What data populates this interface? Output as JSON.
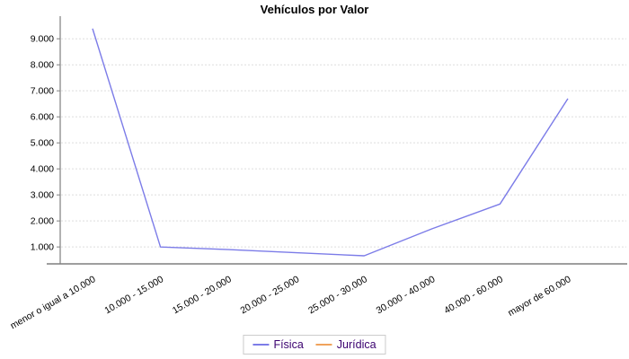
{
  "title": "Vehículos por Valor",
  "chart_data": {
    "type": "line",
    "title": "Vehículos por Valor",
    "categories": [
      "menor o igual a 10.000",
      "10.000 - 15.000",
      "15.000 - 20.000",
      "20.000 - 25.000",
      "25.000 - 30.000",
      "30.000 - 40.000",
      "40.000 - 60.000",
      "mayor de 60.000"
    ],
    "series": [
      {
        "name": "Física",
        "color": "#7c7ce8",
        "values": [
          9390,
          1000,
          900,
          780,
          660,
          1700,
          2650,
          6700
        ]
      },
      {
        "name": "Jurídica",
        "color": "#f0a35c",
        "values": []
      }
    ],
    "xlabel": "",
    "ylabel": "",
    "ylim": [
      350,
      9800
    ],
    "yticks": [
      {
        "value": 1000,
        "label": "1.000"
      },
      {
        "value": 2000,
        "label": "2.000"
      },
      {
        "value": 3000,
        "label": "3.000"
      },
      {
        "value": 4000,
        "label": "4.000"
      },
      {
        "value": 5000,
        "label": "5.000"
      },
      {
        "value": 6000,
        "label": "6.000"
      },
      {
        "value": 7000,
        "label": "7.000"
      },
      {
        "value": 8000,
        "label": "8.000"
      },
      {
        "value": 9000,
        "label": "9.000"
      }
    ],
    "grid": "horizontal-dashed",
    "legend_position": "bottom",
    "x_label_rotation_deg": -30
  },
  "colors": {
    "grid": "#dddddd",
    "axis": "#7f7f7f",
    "tick_label": "#000000",
    "title": "#000000",
    "legend_text": "#3a006f",
    "legend_border": "#cccccc",
    "background": "#ffffff"
  }
}
